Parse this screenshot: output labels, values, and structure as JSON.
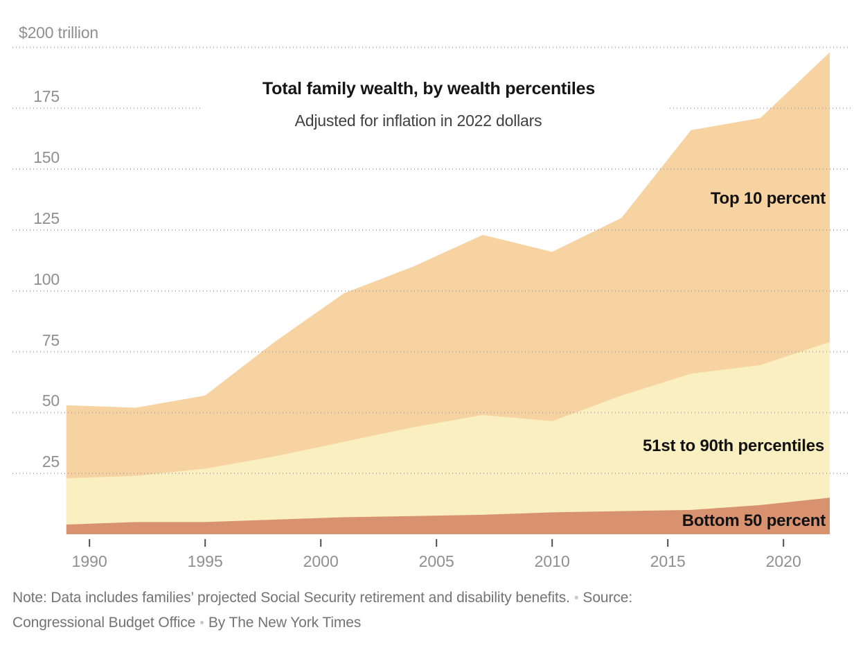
{
  "title": "Total family wealth, by wealth percentiles",
  "subtitle": "Adjusted for inflation in 2022 dollars",
  "y_axis": {
    "top_label": "$200 trillion",
    "gridline_values": [
      25,
      50,
      75,
      100,
      125,
      150,
      175,
      200
    ],
    "labeled_values": [
      25,
      50,
      75,
      100,
      125,
      150,
      175
    ]
  },
  "x_axis": {
    "tick_years": [
      1990,
      1995,
      2000,
      2005,
      2010,
      2015,
      2020
    ]
  },
  "area_labels": {
    "top10": "Top 10 percent",
    "middle40": "51st to 90th percentiles",
    "bottom50": "Bottom 50 percent"
  },
  "note": {
    "line1_text": "Note: Data includes families’ projected Social Security retirement and disability benefits.",
    "line1_suffix": "Source:",
    "line2_source": "Congressional Budget Office",
    "line2_byline": "By The New York Times",
    "bullet": "•"
  },
  "colors": {
    "top10_area": "#f6d3a0",
    "middle40_area": "#f9efc0",
    "bottom50_area": "#d9926f",
    "gridline": "#a9a9a9",
    "tick": "#4d4d4d",
    "axis_text": "#8f8f8f"
  },
  "chart_data": {
    "type": "area",
    "stacked": true,
    "title": "Total family wealth, by wealth percentiles",
    "subtitle": "Adjusted for inflation in 2022 dollars",
    "units": "trillions of 2022 dollars",
    "x": [
      1989,
      1992,
      1995,
      1998,
      2001,
      2004,
      2007,
      2010,
      2013,
      2016,
      2019,
      2022
    ],
    "series": [
      {
        "name": "Bottom 50 percent",
        "color": "#d9926f",
        "values": [
          4,
          5,
          5,
          6,
          7,
          7.5,
          8,
          9,
          9.5,
          10,
          12,
          15
        ]
      },
      {
        "name": "51st to 90th percentiles",
        "color": "#f9efc0",
        "values": [
          19,
          19,
          22,
          26,
          31,
          36.5,
          41,
          37.5,
          47.5,
          56,
          57.5,
          64
        ]
      },
      {
        "name": "Top 10 percent",
        "color": "#f6d3a0",
        "values": [
          30,
          28,
          30,
          47,
          61,
          66,
          74,
          69.5,
          73,
          100,
          101.5,
          119
        ]
      }
    ],
    "stacked_totals": [
      53,
      52,
      57,
      79,
      99,
      110,
      123,
      116,
      130,
      166,
      171,
      198
    ],
    "ylim": [
      0,
      200
    ],
    "xlim": [
      1989,
      2022
    ],
    "grid": "dotted horizontal",
    "legend_position": "labels-on-areas"
  }
}
